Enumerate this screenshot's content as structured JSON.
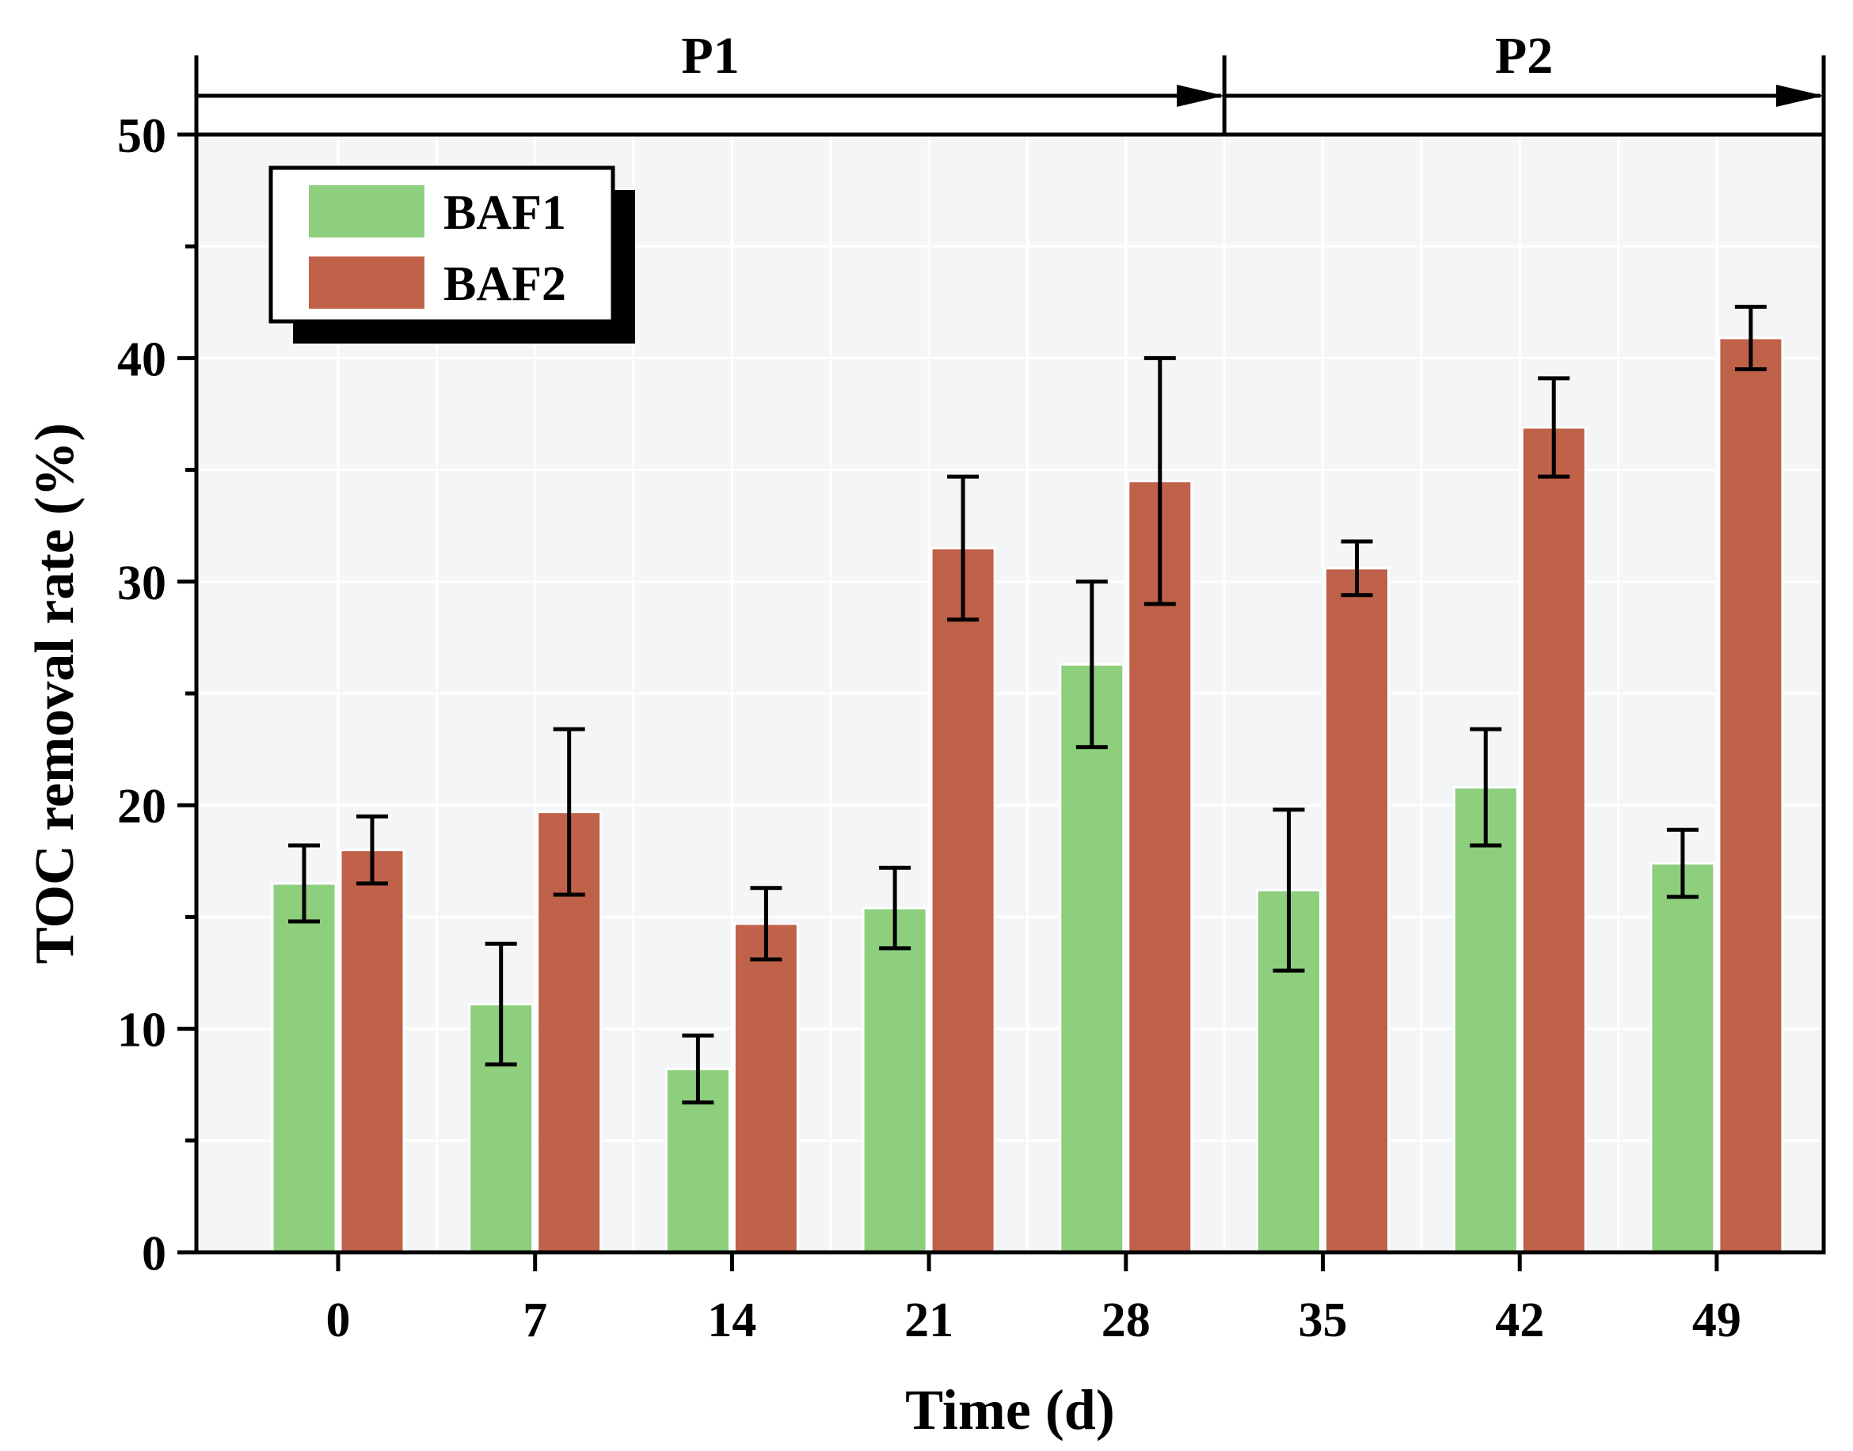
{
  "chart_data": {
    "type": "bar",
    "ylabel": "TOC removal rate (%)",
    "xlabel": "Time (d)",
    "categories": [
      "0",
      "7",
      "14",
      "21",
      "28",
      "35",
      "42",
      "49"
    ],
    "ylim": [
      0,
      50
    ],
    "yticks": [
      0,
      10,
      20,
      30,
      40,
      50
    ],
    "grid": true,
    "legend_position": "top-left",
    "series": [
      {
        "name": "BAF1",
        "color": "#8ecf7e",
        "values": [
          16.5,
          11.1,
          8.2,
          15.4,
          26.3,
          16.2,
          20.8,
          17.4
        ],
        "errors": [
          1.7,
          2.7,
          1.5,
          1.8,
          3.7,
          3.6,
          2.6,
          1.5
        ]
      },
      {
        "name": "BAF2",
        "color": "#c0614a",
        "values": [
          18.0,
          19.7,
          14.7,
          31.5,
          34.5,
          30.6,
          36.9,
          40.9
        ],
        "errors": [
          1.5,
          3.7,
          1.6,
          3.2,
          5.5,
          1.2,
          2.2,
          1.4
        ]
      }
    ],
    "phases": [
      {
        "label": "P1",
        "from": "0",
        "to": "28"
      },
      {
        "label": "P2",
        "from": "35",
        "to": "49"
      }
    ],
    "colors": {
      "plot_background": "#f4f5f7",
      "grid": "#ffffff",
      "axis": "#000000"
    }
  }
}
